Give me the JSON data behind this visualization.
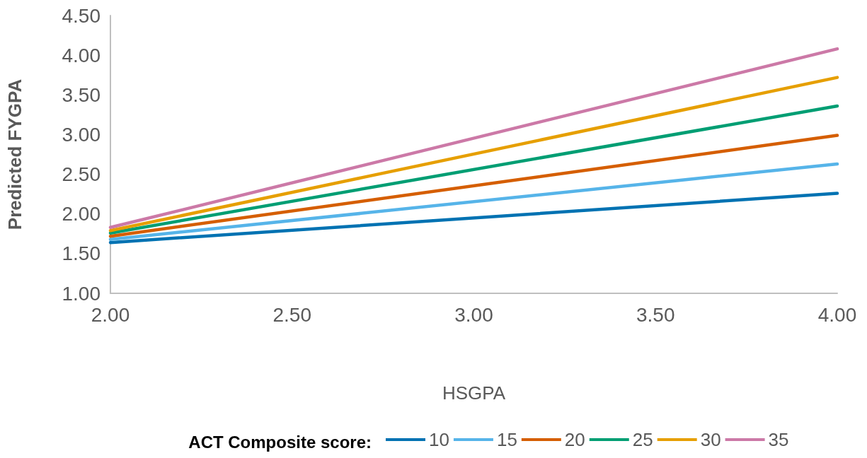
{
  "chart_data": {
    "type": "line",
    "xlabel": "HSGPA",
    "ylabel": "Predicted FYGPA",
    "legend_title": "ACT Composite score:",
    "legend": "bottom",
    "grid": false,
    "marker": "none",
    "line_style": "solid",
    "x": [
      2.0,
      4.0
    ],
    "xlim": [
      2.0,
      4.0
    ],
    "xticks": [
      {
        "value": 2,
        "label": "2.00"
      },
      {
        "value": 2.5,
        "label": "2.50"
      },
      {
        "value": 3,
        "label": "3.00"
      },
      {
        "value": 3.5,
        "label": "3.50"
      },
      {
        "value": 4,
        "label": "4.00"
      }
    ],
    "ylim": [
      1.0,
      4.5
    ],
    "yticks": [
      {
        "value": 1,
        "label": "1.00"
      },
      {
        "value": 1.5,
        "label": "1.50"
      },
      {
        "value": 2,
        "label": "2.00"
      },
      {
        "value": 2.5,
        "label": "2.50"
      },
      {
        "value": 3,
        "label": "3.00"
      },
      {
        "value": 3.5,
        "label": "3.50"
      },
      {
        "value": 4,
        "label": "4.00"
      },
      {
        "value": 4.5,
        "label": "4.50"
      }
    ],
    "series": [
      {
        "name": "10",
        "color": "#0072b2",
        "values": [
          1.64,
          2.26
        ]
      },
      {
        "name": "15",
        "color": "#56b4e9",
        "values": [
          1.68,
          2.63
        ]
      },
      {
        "name": "20",
        "color": "#d55e00",
        "values": [
          1.72,
          2.99
        ]
      },
      {
        "name": "25",
        "color": "#009e73",
        "values": [
          1.76,
          3.36
        ]
      },
      {
        "name": "30",
        "color": "#e69f00",
        "values": [
          1.79,
          3.72
        ]
      },
      {
        "name": "35",
        "color": "#cc79a7",
        "values": [
          1.83,
          4.08
        ]
      }
    ]
  }
}
